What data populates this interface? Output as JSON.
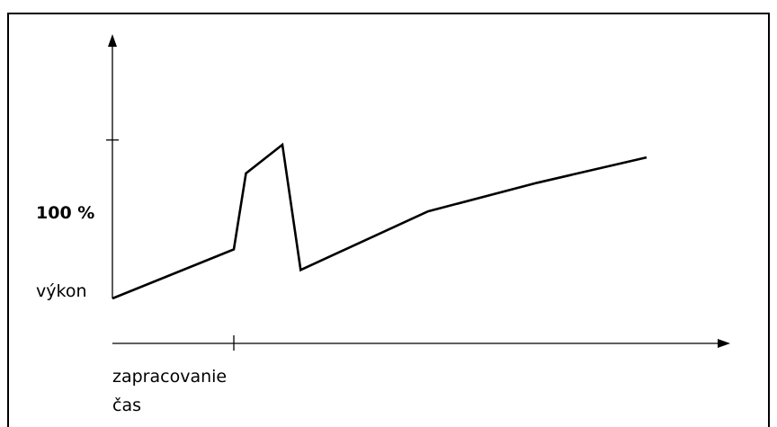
{
  "chart_data": {
    "type": "line",
    "title": "",
    "xlabel": [
      "zapracovanie",
      "čas"
    ],
    "ylabel": "výkon",
    "y_tick_label": "100 %",
    "y_tick_value": 100,
    "xlim": [
      0,
      10
    ],
    "ylim": [
      0,
      160
    ],
    "x_tick_value": 2,
    "grid": false,
    "legend": "none",
    "series": [
      {
        "x": [
          0,
          2,
          2.2,
          2.8,
          3.1,
          5.2,
          7,
          8.8
        ],
        "y": [
          0,
          31,
          79,
          97,
          18,
          55,
          73,
          89
        ]
      }
    ],
    "colors": {
      "line": "#000000",
      "axes": "#000000"
    }
  }
}
